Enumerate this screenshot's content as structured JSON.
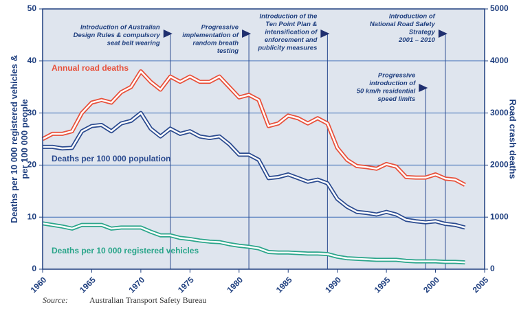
{
  "chart_data": {
    "type": "line",
    "y_label_lines": [
      "Deaths per 10 000 registered vehicles &",
      "per 100 000 people"
    ],
    "y2_label": "Road crash deaths",
    "source_label": "Source:",
    "source": "Australian Transport Safety Bureau",
    "x": [
      1960,
      1961,
      1962,
      1963,
      1964,
      1965,
      1966,
      1967,
      1968,
      1969,
      1970,
      1971,
      1972,
      1973,
      1974,
      1975,
      1976,
      1977,
      1978,
      1979,
      1980,
      1981,
      1982,
      1983,
      1984,
      1985,
      1986,
      1987,
      1988,
      1989,
      1990,
      1991,
      1992,
      1993,
      1994,
      1995,
      1996,
      1997,
      1998,
      1999,
      2000,
      2001,
      2002,
      2003
    ],
    "xlim": [
      1960,
      2005
    ],
    "xticks": [
      1960,
      1965,
      1970,
      1975,
      1980,
      1985,
      1990,
      1995,
      2000,
      2005
    ],
    "ylim": [
      0,
      50
    ],
    "yticks": [
      0,
      10,
      20,
      30,
      40,
      50
    ],
    "y2lim": [
      0,
      5000
    ],
    "y2ticks": [
      0,
      1000,
      2000,
      3000,
      4000,
      5000
    ],
    "grid": true,
    "series": [
      {
        "name": "Annual road deaths",
        "color": "#e8503a",
        "axis": "y2",
        "values": [
          2500,
          2600,
          2600,
          2650,
          3000,
          3200,
          3250,
          3200,
          3400,
          3500,
          3800,
          3600,
          3450,
          3700,
          3600,
          3700,
          3600,
          3600,
          3700,
          3500,
          3300,
          3350,
          3250,
          2750,
          2800,
          2950,
          2900,
          2800,
          2900,
          2800,
          2330,
          2100,
          1980,
          1960,
          1930,
          2020,
          1970,
          1770,
          1760,
          1760,
          1820,
          1740,
          1720,
          1620
        ]
      },
      {
        "name": "Deaths per 100 000 population",
        "color": "#2a4a8f",
        "values": [
          23.5,
          23.5,
          23.2,
          23.3,
          26.5,
          27.5,
          27.7,
          26.5,
          28,
          28.5,
          30,
          27,
          25.5,
          27,
          26,
          26.5,
          25.5,
          25.2,
          25.5,
          24,
          22,
          22,
          21,
          17.5,
          17.7,
          18.2,
          17.5,
          16.8,
          17.2,
          16.5,
          13.5,
          12,
          11,
          10.8,
          10.5,
          11,
          10.5,
          9.5,
          9.2,
          9,
          9.2,
          8.7,
          8.5,
          8
        ]
      },
      {
        "name": "Deaths per 10 000 registered vehicles",
        "color": "#2aa58a",
        "values": [
          8.8,
          8.5,
          8.2,
          7.8,
          8.5,
          8.5,
          8.5,
          7.8,
          8,
          8,
          8,
          7.2,
          6.5,
          6.5,
          6,
          5.8,
          5.5,
          5.3,
          5.2,
          4.8,
          4.5,
          4.3,
          4,
          3.3,
          3.2,
          3.2,
          3.1,
          3,
          3,
          2.9,
          2.4,
          2.1,
          2,
          1.9,
          1.8,
          1.8,
          1.8,
          1.6,
          1.5,
          1.5,
          1.5,
          1.4,
          1.4,
          1.3
        ]
      }
    ],
    "annotations": [
      {
        "x": 1973,
        "lines": [
          "Introduction of Australian",
          "Design Rules & compulsory",
          "seat belt wearing"
        ]
      },
      {
        "x": 1981,
        "lines": [
          "Progressive",
          "implementation of",
          "random breath",
          "testing"
        ]
      },
      {
        "x": 1989,
        "lines": [
          "Introduction of the",
          "Ten Point Plan &",
          "intensification of",
          "enforcement and",
          "publicity measures"
        ]
      },
      {
        "x": 2001,
        "lines": [
          "Introduction of",
          "National Road Safety",
          "Strategy",
          "2001 – 2010"
        ]
      },
      {
        "x": 1999,
        "lines": [
          "Progressive",
          "introduction of",
          "50 km/h residential",
          "speed limits"
        ]
      }
    ]
  }
}
